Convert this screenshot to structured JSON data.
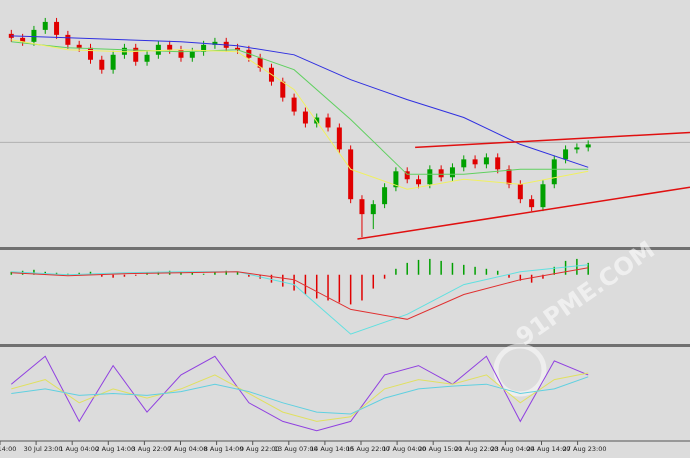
{
  "chart_data": [
    {
      "type": "candlestick",
      "xlim": [
        -1,
        60
      ],
      "ylim": [
        0,
        248
      ],
      "up_color": "#00a000",
      "down_color": "#e00000",
      "open": [
        214,
        210,
        206,
        218,
        226,
        213,
        203,
        200,
        188,
        178,
        193,
        200,
        186,
        193,
        203,
        198,
        190,
        196,
        203,
        206,
        200,
        198,
        190,
        180,
        166,
        150,
        136,
        124,
        130,
        120,
        98,
        48,
        33,
        43,
        60,
        76,
        68,
        63,
        78,
        70,
        80,
        88,
        83,
        90,
        78,
        63,
        48,
        40,
        63,
        88,
        98,
        100
      ],
      "high": [
        218,
        214,
        222,
        230,
        230,
        217,
        207,
        204,
        192,
        197,
        204,
        204,
        197,
        207,
        207,
        202,
        200,
        207,
        210,
        210,
        204,
        202,
        194,
        184,
        170,
        154,
        140,
        134,
        134,
        124,
        102,
        52,
        47,
        64,
        80,
        80,
        72,
        82,
        82,
        84,
        92,
        92,
        94,
        94,
        82,
        67,
        52,
        67,
        92,
        102,
        104,
        107
      ],
      "low": [
        206,
        202,
        202,
        214,
        209,
        199,
        196,
        184,
        174,
        174,
        189,
        182,
        182,
        189,
        194,
        186,
        186,
        192,
        199,
        196,
        194,
        186,
        176,
        162,
        146,
        132,
        120,
        120,
        116,
        94,
        44,
        10,
        18,
        39,
        56,
        64,
        59,
        59,
        66,
        66,
        76,
        79,
        79,
        74,
        59,
        44,
        36,
        36,
        59,
        84,
        94,
        96
      ],
      "close": [
        210,
        206,
        218,
        226,
        213,
        203,
        200,
        188,
        178,
        193,
        200,
        186,
        193,
        203,
        198,
        190,
        196,
        203,
        206,
        200,
        198,
        190,
        180,
        166,
        150,
        136,
        124,
        130,
        120,
        98,
        48,
        33,
        43,
        60,
        76,
        68,
        63,
        78,
        70,
        80,
        88,
        83,
        90,
        78,
        63,
        48,
        40,
        63,
        88,
        98,
        100,
        103
      ],
      "hline": {
        "value": 105,
        "color": "#b0b0b0"
      },
      "series": [
        {
          "color": "#3030e0",
          "x": [
            0,
            5,
            10,
            15,
            20,
            25,
            30,
            35,
            40,
            45,
            51
          ],
          "values": [
            212,
            210,
            208,
            206,
            202,
            193,
            168,
            148,
            130,
            103,
            80
          ]
        },
        {
          "color": "#60d060",
          "x": [
            0,
            5,
            10,
            15,
            20,
            25,
            30,
            35,
            40,
            45,
            51
          ],
          "values": [
            206,
            200,
            198,
            196,
            198,
            178,
            128,
            73,
            73,
            78,
            78
          ]
        },
        {
          "color": "#f0f060",
          "x": [
            0,
            5,
            10,
            15,
            20,
            25,
            30,
            35,
            40,
            45,
            51
          ],
          "values": [
            208,
            198,
            196,
            198,
            196,
            158,
            78,
            58,
            68,
            63,
            76
          ]
        }
      ],
      "trendlines": [
        {
          "color": "#e01010",
          "x": [
            30.6,
            60
          ],
          "values": [
            8,
            60
          ]
        },
        {
          "color": "#e01010",
          "x": [
            35.7,
            60
          ],
          "values": [
            100,
            115
          ]
        }
      ],
      "x_labels": [
        "14:00",
        "30 Jul 23:00",
        "1 Aug 04:00",
        "2 Aug 14:00",
        "3 Aug 22:00",
        "7 Aug 04:00",
        "8 Aug 14:00",
        "9 Aug 22:00",
        "13 Aug 07:00",
        "14 Aug 14:00",
        "15 Aug 22:00",
        "17 Aug 04:00",
        "20 Aug 15:00",
        "21 Aug 22:00",
        "23 Aug 04:00",
        "24 Aug 14:00",
        "27 Aug 23:00"
      ],
      "watermark": "91PME.COM"
    },
    {
      "type": "macd",
      "xlim": [
        -1,
        60
      ],
      "ylim": [
        -70,
        25
      ],
      "up_color": "#00a000",
      "down_color": "#e00000",
      "values": [
        3,
        4,
        5,
        3,
        2,
        1,
        2,
        3,
        -2,
        -3,
        -2,
        -1,
        2,
        3,
        4,
        3,
        2,
        1,
        3,
        4,
        3,
        -2,
        -4,
        -8,
        -12,
        -16,
        -20,
        -24,
        -26,
        -28,
        -30,
        -26,
        -14,
        -4,
        6,
        12,
        15,
        16,
        14,
        12,
        10,
        8,
        6,
        4,
        -3,
        -6,
        -8,
        -4,
        8,
        14,
        16,
        12
      ],
      "series": [
        {
          "color": "#60e0e0",
          "x": [
            0,
            5,
            10,
            15,
            20,
            25,
            30,
            35,
            40,
            45,
            51
          ],
          "values": [
            3,
            0,
            2,
            3,
            3,
            -10,
            -60,
            -40,
            -10,
            3,
            10
          ]
        },
        {
          "color": "#e03030",
          "x": [
            0,
            5,
            10,
            15,
            20,
            25,
            30,
            35,
            40,
            45,
            51
          ],
          "values": [
            2,
            -1,
            1,
            2,
            3,
            -5,
            -35,
            -45,
            -20,
            -5,
            7
          ]
        }
      ]
    },
    {
      "type": "stochastic",
      "xlim": [
        -1,
        60
      ],
      "ylim": [
        0,
        100
      ],
      "series": [
        {
          "color": "#9040e0",
          "x": [
            0,
            3,
            6,
            9,
            12,
            15,
            18,
            21,
            24,
            27,
            30,
            33,
            36,
            39,
            42,
            45,
            48,
            51
          ],
          "values": [
            60,
            90,
            20,
            80,
            30,
            70,
            90,
            40,
            20,
            10,
            20,
            70,
            80,
            60,
            90,
            20,
            85,
            70
          ]
        },
        {
          "color": "#e0e060",
          "x": [
            0,
            3,
            6,
            9,
            12,
            15,
            18,
            21,
            24,
            27,
            30,
            33,
            36,
            39,
            42,
            45,
            48,
            51
          ],
          "values": [
            55,
            65,
            40,
            55,
            45,
            55,
            70,
            50,
            30,
            20,
            25,
            55,
            65,
            60,
            70,
            40,
            65,
            72
          ]
        },
        {
          "color": "#60d0e0",
          "x": [
            0,
            3,
            6,
            9,
            12,
            15,
            18,
            21,
            24,
            27,
            30,
            33,
            36,
            39,
            42,
            45,
            48,
            51
          ],
          "values": [
            50,
            55,
            48,
            50,
            48,
            52,
            60,
            52,
            40,
            30,
            28,
            45,
            55,
            58,
            60,
            50,
            55,
            68
          ]
        }
      ]
    }
  ]
}
